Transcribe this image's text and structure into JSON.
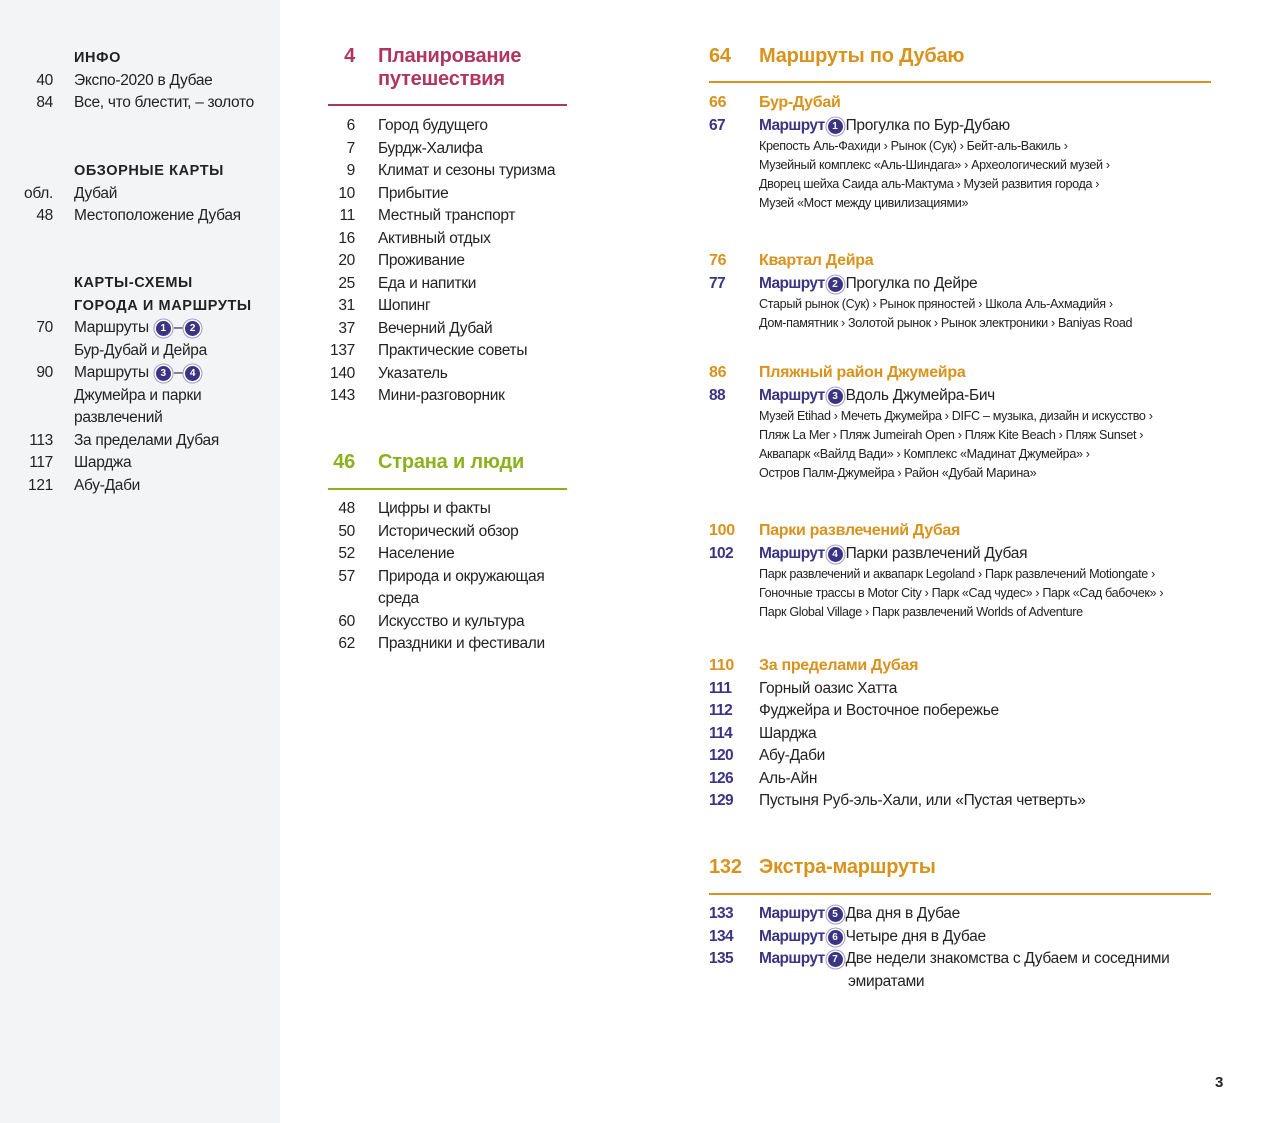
{
  "colors": {
    "plan": "#b0365f",
    "country": "#8bb11c",
    "dubai": "#d9921c",
    "route": "#3b3384",
    "sidebar_bg": "#f3f4f6"
  },
  "sidebar": [
    {
      "title": [
        "ИНФО"
      ],
      "items": [
        {
          "n": "40",
          "t": "Экспо-2020 в Дубае"
        },
        {
          "n": "84",
          "t": "Все, что блестит, – золото"
        }
      ]
    },
    {
      "title": [
        "ОБЗОРНЫЕ КАРТЫ"
      ],
      "items": [
        {
          "n": "обл.",
          "t": "Дубай"
        },
        {
          "n": "48",
          "t": "Местоположение Дубая"
        }
      ]
    },
    {
      "title": [
        "КАРТЫ-СХЕМЫ",
        "ГОРОДА И МАРШРУТЫ"
      ],
      "items": [
        {
          "n": "70",
          "t": "Маршруты",
          "badges": [
            "1",
            "2"
          ]
        },
        {
          "n": "",
          "t": "Бур-Дубай и Дейра"
        },
        {
          "n": "90",
          "t": "Маршруты",
          "badges": [
            "3",
            "4"
          ]
        },
        {
          "n": "",
          "t": "Джумейра и парки"
        },
        {
          "n": "",
          "t": "развлечений"
        },
        {
          "n": "113",
          "t": "За пределами Дубая"
        },
        {
          "n": "117",
          "t": "Шарджа"
        },
        {
          "n": "121",
          "t": "Абу-Даби"
        }
      ]
    }
  ],
  "middle": [
    {
      "num": "4",
      "title": [
        "Планирование",
        "путешествия"
      ],
      "color": "plan",
      "items": [
        {
          "n": "6",
          "t": "Город будущего"
        },
        {
          "n": "7",
          "t": "Бурдж-Халифа"
        },
        {
          "n": "9",
          "t": "Климат и сезоны туризма"
        },
        {
          "n": "10",
          "t": "Прибытие"
        },
        {
          "n": "11",
          "t": "Местный транспорт"
        },
        {
          "n": "16",
          "t": "Активный отдых"
        },
        {
          "n": "20",
          "t": "Проживание"
        },
        {
          "n": "25",
          "t": "Еда и напитки"
        },
        {
          "n": "31",
          "t": "Шопинг"
        },
        {
          "n": "37",
          "t": "Вечерний Дубай"
        },
        {
          "n": "137",
          "t": "Практические советы"
        },
        {
          "n": "140",
          "t": "Указатель"
        },
        {
          "n": "143",
          "t": "Мини-разговорник"
        }
      ]
    },
    {
      "num": "46",
      "title": [
        "Страна и люди"
      ],
      "color": "country",
      "items": [
        {
          "n": "48",
          "t": "Цифры и факты"
        },
        {
          "n": "50",
          "t": "Исторический обзор"
        },
        {
          "n": "52",
          "t": "Население"
        },
        {
          "n": "57",
          "t": "Природа и окружающая"
        },
        {
          "n": "",
          "t": "среда"
        },
        {
          "n": "60",
          "t": "Искусство и культура"
        },
        {
          "n": "62",
          "t": "Праздники и фестивали"
        }
      ]
    }
  ],
  "right": {
    "route_label": "Маршрут",
    "main": [
      {
        "num": "64",
        "title": "Маршруты по Дубаю"
      },
      {
        "num": "132",
        "title": "Экстра-маршруты"
      }
    ],
    "subs": [
      {
        "num": "66",
        "title": "Бур-Дубай",
        "route": {
          "n": "67",
          "badge": "1",
          "t": "Прогулка по Бур-Дубаю"
        },
        "details": [
          "Крепость Аль-Фахиди › Рынок (Сук) › Бейт-аль-Вакиль ›",
          "Музейный комплекс «Аль-Шиндага» › Археологический музей ›",
          "Дворец шейха Саида аль-Мактума › Музей развития города ›",
          "Музей «Мост между цивилизациями»"
        ]
      },
      {
        "num": "76",
        "title": "Квартал Дейра",
        "route": {
          "n": "77",
          "badge": "2",
          "t": "Прогулка по Дейре"
        },
        "details": [
          "Старый рынок (Сук) › Рынок пряностей › Школа Аль-Ахмадийя ›",
          "Дом-памятник › Золотой рынок › Рынок электроники › Baniyas Road"
        ]
      },
      {
        "num": "86",
        "title": "Пляжный район Джумейра",
        "route": {
          "n": "88",
          "badge": "3",
          "t": "Вдоль Джумейра-Бич"
        },
        "details": [
          "Музей Etihad › Мечеть Джумейра › DIFC – музыка, дизайн и искусство ›",
          "Пляж La Mer › Пляж Jumeirah Open › Пляж Kite Beach › Пляж Sunset ›",
          "Аквапарк «Вайлд Вади» › Комплекс «Мадинат Джумейра» ›",
          "Остров Палм-Джумейра › Район «Дубай Марина»"
        ]
      },
      {
        "num": "100",
        "title": "Парки развлечений Дубая",
        "route": {
          "n": "102",
          "badge": "4",
          "t": "Парки развлечений Дубая"
        },
        "details": [
          "Парк развлечений и аквапарк Legoland › Парк развлечений Motiongate ›",
          "Гоночные трассы в Motor City › Парк «Сад чудес» › Парк «Сад бабочек» ›",
          "Парк Global Village › Парк развлечений Worlds of Adventure"
        ]
      },
      {
        "num": "110",
        "title": "За пределами Дубая",
        "items": [
          {
            "n": "111",
            "t": "Горный оазис Хатта"
          },
          {
            "n": "112",
            "t": "Фуджейра и Восточное побережье"
          },
          {
            "n": "114",
            "t": "Шарджа"
          },
          {
            "n": "120",
            "t": "Абу-Даби"
          },
          {
            "n": "126",
            "t": "Аль-Айн"
          },
          {
            "n": "129",
            "t": "Пустыня Руб-эль-Хали, или «Пустая четверть»"
          }
        ]
      }
    ],
    "extra": [
      {
        "n": "133",
        "badge": "5",
        "t": [
          "Два дня в Дубае"
        ]
      },
      {
        "n": "134",
        "badge": "6",
        "t": [
          "Четыре дня в Дубае"
        ]
      },
      {
        "n": "135",
        "badge": "7",
        "t": [
          "Две недели знакомства с Дубаем и соседними",
          "эмиратами"
        ]
      }
    ]
  },
  "page_number": "3"
}
